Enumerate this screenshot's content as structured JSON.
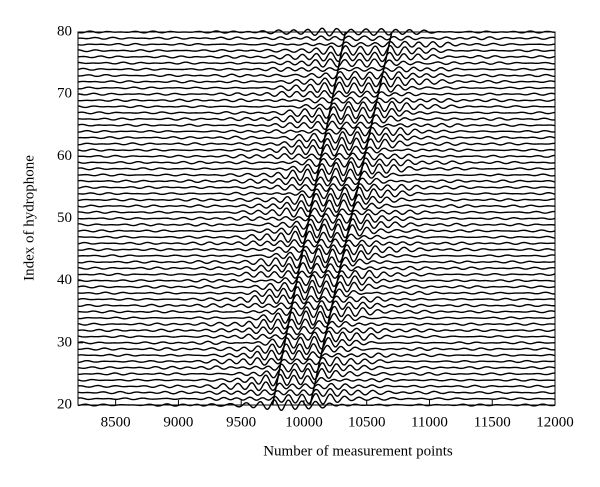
{
  "chart_data": {
    "type": "wiggle",
    "xlabel": "Number of measurement points",
    "ylabel": "Index of hydrophone",
    "traces": [
      20,
      21,
      22,
      23,
      24,
      25,
      26,
      27,
      28,
      29,
      30,
      31,
      32,
      33,
      34,
      35,
      36,
      37,
      38,
      39,
      40,
      41,
      42,
      43,
      44,
      45,
      46,
      47,
      48,
      49,
      50,
      51,
      52,
      53,
      54,
      55,
      56,
      57,
      58,
      59,
      60,
      61,
      62,
      63,
      64,
      65,
      66,
      67,
      68,
      69,
      70,
      71,
      72,
      73,
      74,
      75,
      76,
      77,
      78,
      79,
      80
    ],
    "arrivals": [
      {
        "x": [
          9750,
          10330
        ],
        "y": [
          20,
          80
        ]
      },
      {
        "x": [
          10050,
          10700
        ],
        "y": [
          20,
          80
        ]
      }
    ],
    "color": "#000000",
    "xlim": [
      8200,
      12000
    ],
    "ylim": [
      20,
      80
    ],
    "xticks": [
      8500,
      9000,
      9500,
      10000,
      10500,
      11000,
      11500,
      12000
    ],
    "yticks": [
      20,
      30,
      40,
      50,
      60,
      70,
      80
    ]
  }
}
